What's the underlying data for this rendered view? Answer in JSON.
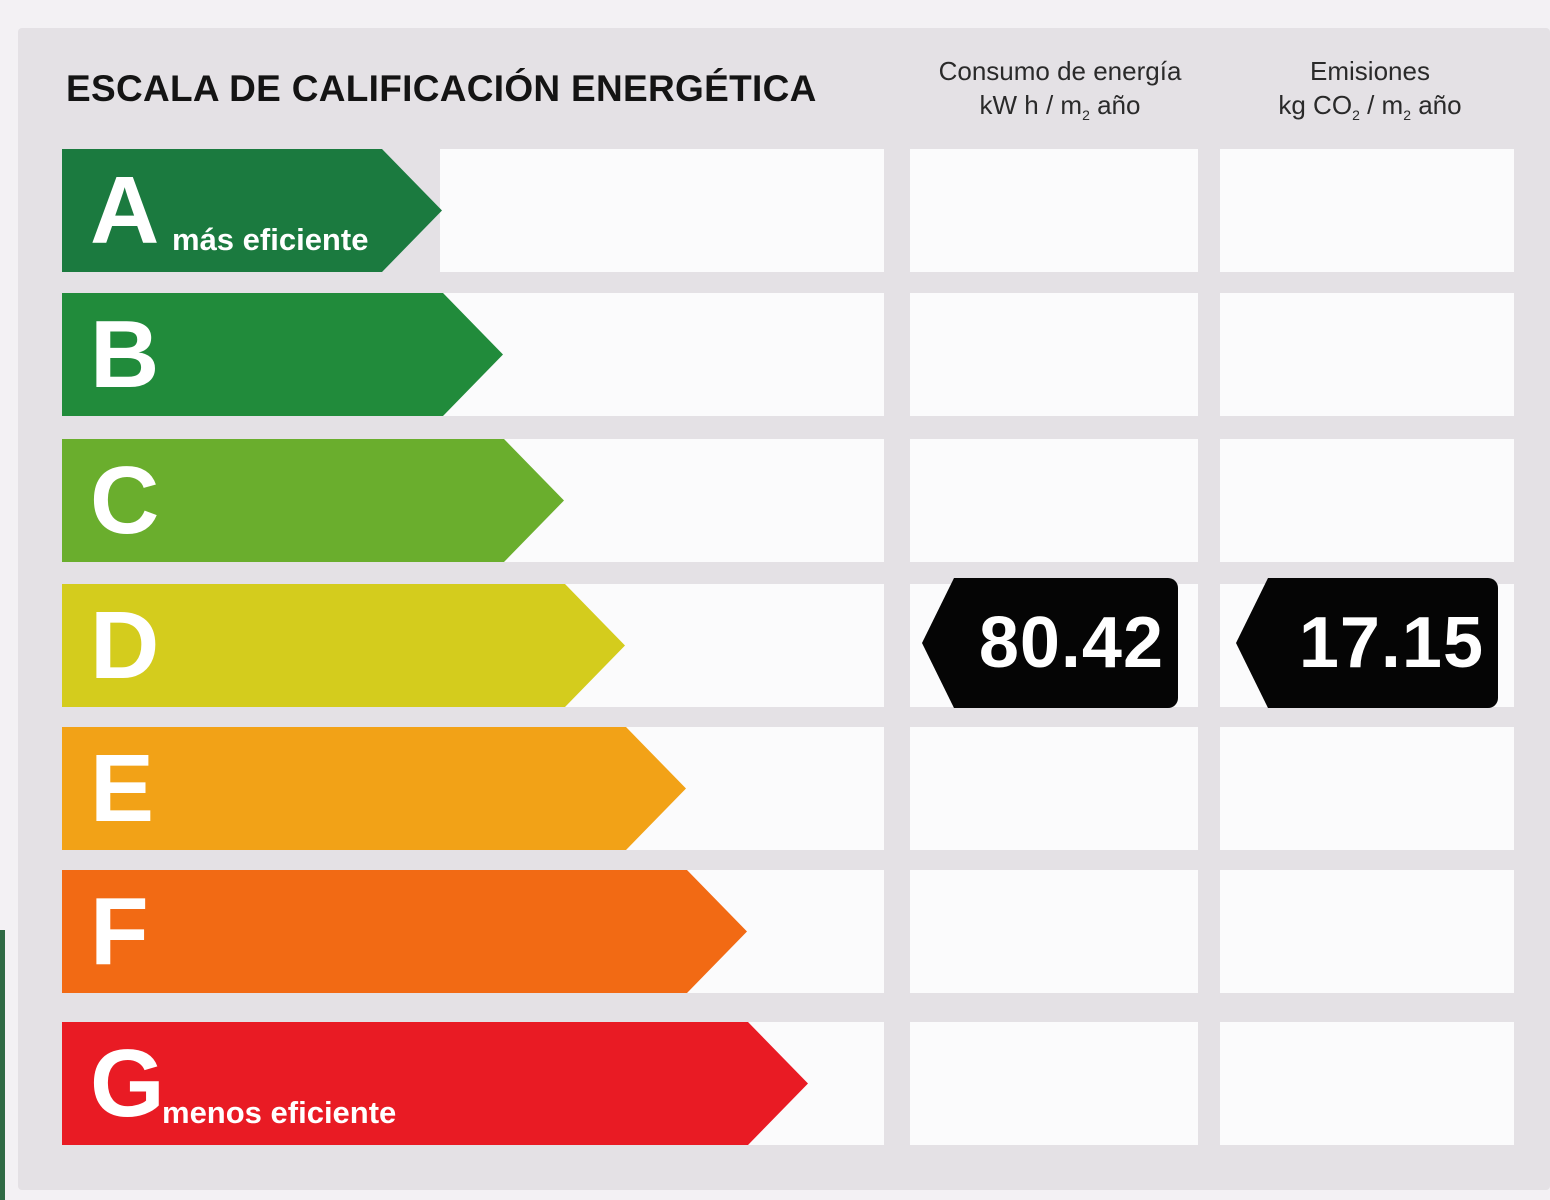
{
  "title": "ESCALA DE CALIFICACIÓN ENERGÉTICA",
  "columns": {
    "energy": {
      "label": "Consumo de energía",
      "unit_prefix": "kW h / m",
      "unit_sub": "2",
      "unit_suffix": " año"
    },
    "emissions": {
      "label": "Emisiones",
      "unit_prefix": "kg CO",
      "unit_sub": "2",
      "unit_mid": " / m",
      "unit_sub2": "2",
      "unit_suffix": " año"
    }
  },
  "bands": [
    {
      "letter": "A",
      "caption": "más eficiente",
      "color": "#1b7a3f"
    },
    {
      "letter": "B",
      "caption": "",
      "color": "#218b3b"
    },
    {
      "letter": "C",
      "caption": "",
      "color": "#6aae2d"
    },
    {
      "letter": "D",
      "caption": "",
      "color": "#d4cc1d"
    },
    {
      "letter": "E",
      "caption": "",
      "color": "#f2a217"
    },
    {
      "letter": "F",
      "caption": "",
      "color": "#f26a14"
    },
    {
      "letter": "G",
      "caption": "menos eficiente",
      "color": "#e91b24"
    }
  ],
  "rating": {
    "band": "D",
    "energy_value": "80.42",
    "emissions_value": "17.15",
    "color": "#050505"
  }
}
